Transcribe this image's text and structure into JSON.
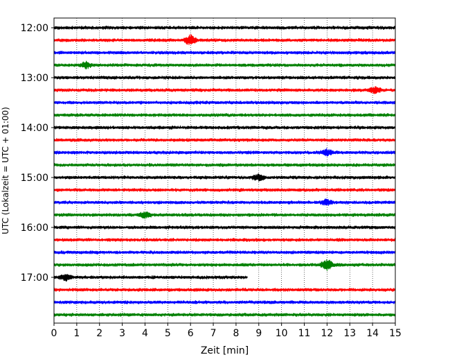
{
  "chart_data": {
    "type": "line",
    "xlabel": "Zeit  [min]",
    "ylabel": "UTC (Lokalzeit = UTC + 01:00)",
    "xlim": [
      0,
      15
    ],
    "x_ticks": [
      0,
      1,
      2,
      3,
      4,
      5,
      6,
      7,
      8,
      9,
      10,
      11,
      12,
      13,
      14,
      15
    ],
    "y_tick_labels": [
      "12:00",
      "13:00",
      "14:00",
      "15:00",
      "16:00",
      "17:00"
    ],
    "grid": "vertical dotted at each minute",
    "colors": {
      "black": "#000000",
      "red": "#ff0000",
      "blue": "#0000ff",
      "green": "#008000"
    },
    "traces": [
      {
        "start": "12:00",
        "color": "black",
        "duration_min": 15
      },
      {
        "start": "12:15",
        "color": "red",
        "duration_min": 15
      },
      {
        "start": "12:30",
        "color": "blue",
        "duration_min": 15
      },
      {
        "start": "12:45",
        "color": "green",
        "duration_min": 15
      },
      {
        "start": "13:00",
        "color": "black",
        "duration_min": 15
      },
      {
        "start": "13:15",
        "color": "red",
        "duration_min": 15
      },
      {
        "start": "13:30",
        "color": "blue",
        "duration_min": 15
      },
      {
        "start": "13:45",
        "color": "green",
        "duration_min": 15
      },
      {
        "start": "14:00",
        "color": "black",
        "duration_min": 15
      },
      {
        "start": "14:15",
        "color": "red",
        "duration_min": 15
      },
      {
        "start": "14:30",
        "color": "blue",
        "duration_min": 15
      },
      {
        "start": "14:45",
        "color": "green",
        "duration_min": 15
      },
      {
        "start": "15:00",
        "color": "black",
        "duration_min": 15
      },
      {
        "start": "15:15",
        "color": "red",
        "duration_min": 15
      },
      {
        "start": "15:30",
        "color": "blue",
        "duration_min": 15
      },
      {
        "start": "15:45",
        "color": "green",
        "duration_min": 15
      },
      {
        "start": "16:00",
        "color": "black",
        "duration_min": 15
      },
      {
        "start": "16:15",
        "color": "red",
        "duration_min": 15
      },
      {
        "start": "16:30",
        "color": "blue",
        "duration_min": 15
      },
      {
        "start": "16:45",
        "color": "green",
        "duration_min": 15
      },
      {
        "start": "17:00",
        "color": "black",
        "duration_min": 8.5
      },
      {
        "start": "17:15",
        "color": "red",
        "duration_min": 15
      },
      {
        "start": "17:30",
        "color": "blue",
        "duration_min": 15
      },
      {
        "start": "17:45",
        "color": "green",
        "duration_min": 15
      }
    ],
    "events": [
      {
        "trace": "12:15",
        "minute": 6.0,
        "amplitude": "high"
      },
      {
        "trace": "12:45",
        "minute": 1.4,
        "amplitude": "medium"
      },
      {
        "trace": "13:15",
        "minute": 14.1,
        "amplitude": "medium"
      },
      {
        "trace": "14:30",
        "minute": 12.0,
        "amplitude": "medium"
      },
      {
        "trace": "15:00",
        "minute": 9.0,
        "amplitude": "medium"
      },
      {
        "trace": "15:30",
        "minute": 12.0,
        "amplitude": "medium"
      },
      {
        "trace": "15:45",
        "minute": 4.0,
        "amplitude": "medium"
      },
      {
        "trace": "16:45",
        "minute": 12.0,
        "amplitude": "high"
      },
      {
        "trace": "17:00",
        "minute": 0.5,
        "amplitude": "medium"
      }
    ]
  }
}
